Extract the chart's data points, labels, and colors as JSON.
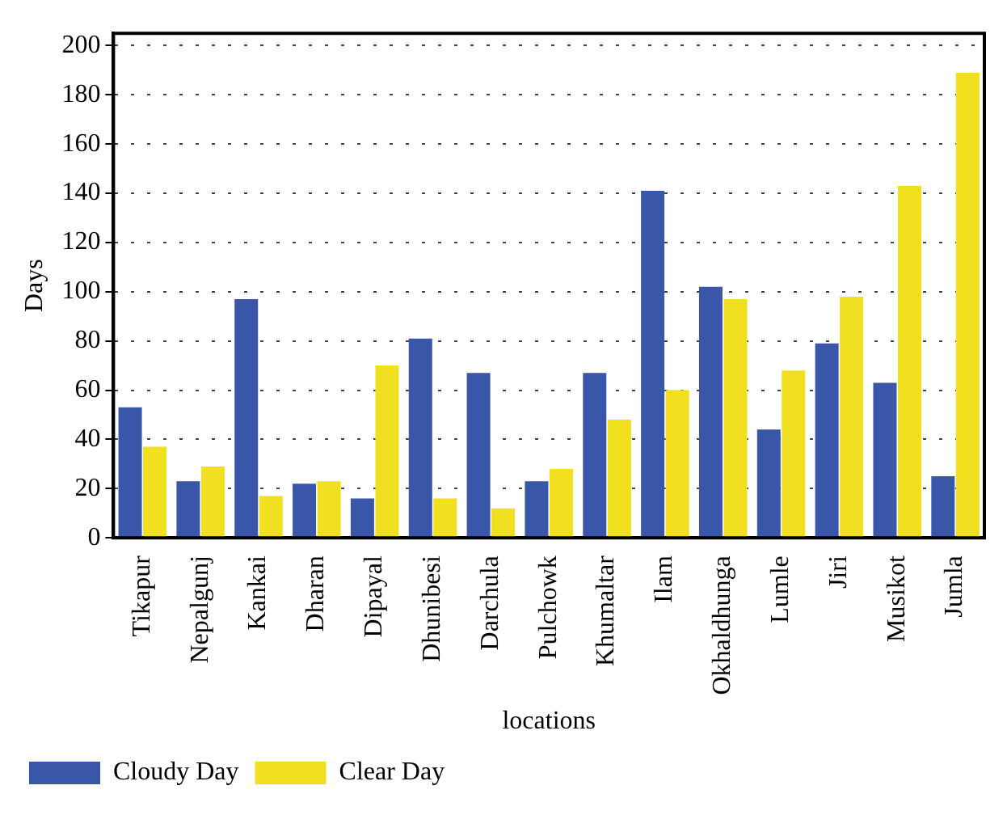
{
  "chart_data": {
    "type": "bar",
    "xlabel": "locations",
    "ylabel": "Days",
    "categories": [
      "Tikapur",
      "Nepalgunj",
      "Kankai",
      "Dharan",
      "Dipayal",
      "Dhunibesi",
      "Darchula",
      "Pulchowk",
      "Khumaltar",
      "Ilam",
      "Okhaldhunga",
      "Lumle",
      "Jiri",
      "Musikot",
      "Jumla"
    ],
    "series": [
      {
        "name": "Cloudy Day",
        "color": "#3a56a8",
        "values": [
          53,
          23,
          97,
          22,
          16,
          81,
          67,
          23,
          67,
          141,
          102,
          44,
          79,
          63,
          25
        ]
      },
      {
        "name": "Clear Day",
        "color": "#f0e020",
        "values": [
          37,
          29,
          17,
          23,
          70,
          16,
          12,
          28,
          48,
          60,
          97,
          68,
          98,
          143,
          189
        ]
      }
    ],
    "ylim": [
      0,
      205
    ],
    "yticks": [
      0,
      20,
      40,
      60,
      80,
      100,
      120,
      140,
      160,
      180,
      200
    ],
    "grid": "y",
    "legend": "bottom left"
  }
}
